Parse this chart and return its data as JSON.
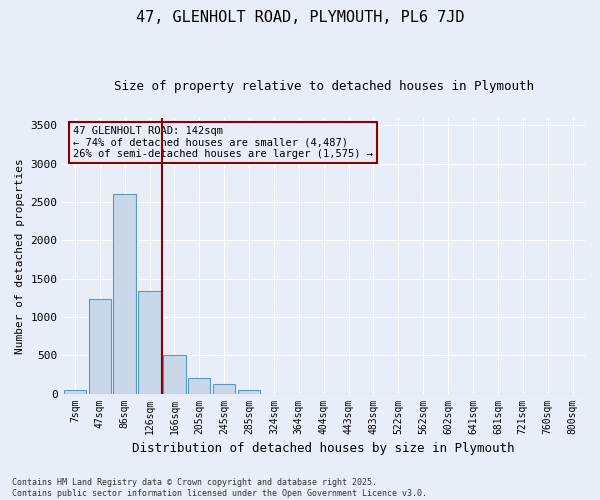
{
  "title": "47, GLENHOLT ROAD, PLYMOUTH, PL6 7JD",
  "subtitle": "Size of property relative to detached houses in Plymouth",
  "xlabel": "Distribution of detached houses by size in Plymouth",
  "ylabel": "Number of detached properties",
  "categories": [
    "7sqm",
    "47sqm",
    "86sqm",
    "126sqm",
    "166sqm",
    "205sqm",
    "245sqm",
    "285sqm",
    "324sqm",
    "364sqm",
    "404sqm",
    "443sqm",
    "483sqm",
    "522sqm",
    "562sqm",
    "602sqm",
    "641sqm",
    "681sqm",
    "721sqm",
    "760sqm",
    "800sqm"
  ],
  "values": [
    50,
    1230,
    2600,
    1340,
    500,
    200,
    120,
    50,
    0,
    0,
    0,
    0,
    0,
    0,
    0,
    0,
    0,
    0,
    0,
    0,
    0
  ],
  "bar_color": "#c8d8e8",
  "bar_edge_color": "#5a9abf",
  "vline_color": "#8b0000",
  "annotation_text": "47 GLENHOLT ROAD: 142sqm\n← 74% of detached houses are smaller (4,487)\n26% of semi-detached houses are larger (1,575) →",
  "annotation_box_color": "#8b0000",
  "background_color": "#e8eef8",
  "grid_color": "#ffffff",
  "ylim": [
    0,
    3600
  ],
  "yticks": [
    0,
    500,
    1000,
    1500,
    2000,
    2500,
    3000,
    3500
  ],
  "footnote": "Contains HM Land Registry data © Crown copyright and database right 2025.\nContains public sector information licensed under the Open Government Licence v3.0."
}
